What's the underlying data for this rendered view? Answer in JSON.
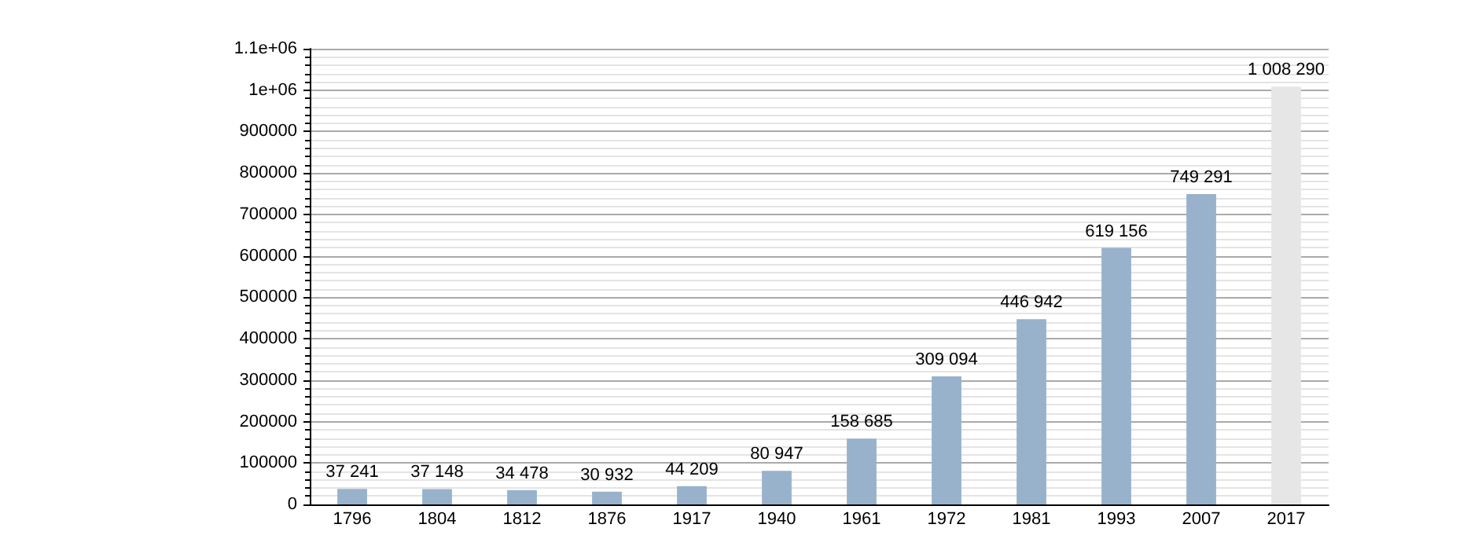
{
  "chart_data": {
    "type": "bar",
    "categories": [
      "1796",
      "1804",
      "1812",
      "1876",
      "1917",
      "1940",
      "1961",
      "1972",
      "1981",
      "1993",
      "2007",
      "2017"
    ],
    "values": [
      37241,
      37148,
      34478,
      30932,
      44209,
      80947,
      158685,
      309094,
      446942,
      619156,
      749291,
      1008290
    ],
    "value_labels": [
      "37 241",
      "37 148",
      "34 478",
      "30 932",
      "44 209",
      "80 947",
      "158 685",
      "309 094",
      "446 942",
      "619 156",
      "749 291",
      "1 008 290"
    ],
    "colors": [
      "#98b2cb",
      "#98b2cb",
      "#98b2cb",
      "#98b2cb",
      "#98b2cb",
      "#98b2cb",
      "#98b2cb",
      "#98b2cb",
      "#98b2cb",
      "#98b2cb",
      "#98b2cb",
      "#e6e6e6"
    ],
    "ylim": [
      0,
      1100000
    ],
    "yticks": [
      0,
      100000,
      200000,
      300000,
      400000,
      500000,
      600000,
      700000,
      800000,
      900000,
      {
        "value": 1000000,
        "label": "1e+06"
      },
      {
        "value": 1100000,
        "label": "1.1e+06"
      }
    ],
    "grid": "y"
  }
}
